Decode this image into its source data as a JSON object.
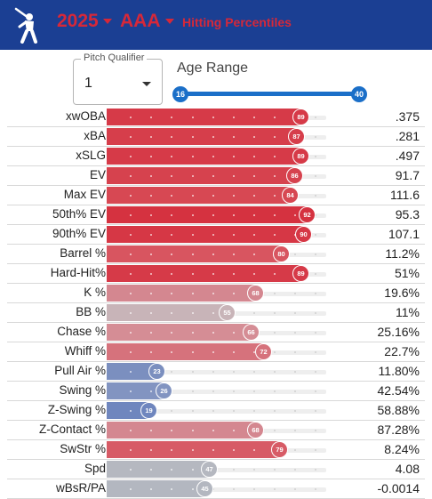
{
  "header": {
    "year": "2025",
    "level": "AAA",
    "subtitle": "Hitting Percentiles",
    "brand_bg": "#1b3f93",
    "accent": "#d62839"
  },
  "controls": {
    "pitch_qualifier_label": "Pitch Qualifier",
    "pitch_qualifier_value": "1",
    "age_range_label": "Age Range",
    "age_min": "16",
    "age_max": "40",
    "slider_color": "#1b6fc8"
  },
  "stats": [
    {
      "label": "xwOBA",
      "pct": "89",
      "value": ".375",
      "color": "#d63a48"
    },
    {
      "label": "xBA",
      "pct": "87",
      "value": ".281",
      "color": "#d63e4b"
    },
    {
      "label": "xSLG",
      "pct": "89",
      "value": ".497",
      "color": "#d63a48"
    },
    {
      "label": "EV",
      "pct": "86",
      "value": "91.7",
      "color": "#d6424e"
    },
    {
      "label": "Max EV",
      "pct": "84",
      "value": "111.6",
      "color": "#d74853"
    },
    {
      "label": "50th% EV",
      "pct": "92",
      "value": "95.3",
      "color": "#d53240"
    },
    {
      "label": "90th% EV",
      "pct": "90",
      "value": "107.1",
      "color": "#d63745"
    },
    {
      "label": "Barrel %",
      "pct": "80",
      "value": "11.2%",
      "color": "#d85560"
    },
    {
      "label": "Hard-Hit%",
      "pct": "89",
      "value": "51%",
      "color": "#d63a48"
    },
    {
      "label": "K %",
      "pct": "68",
      "value": "19.6%",
      "color": "#d48790"
    },
    {
      "label": "BB %",
      "pct": "55",
      "value": "11%",
      "color": "#c8b4b8"
    },
    {
      "label": "Chase %",
      "pct": "66",
      "value": "25.16%",
      "color": "#d58d95"
    },
    {
      "label": "Whiff %",
      "pct": "72",
      "value": "22.7%",
      "color": "#d6727c"
    },
    {
      "label": "Pull Air %",
      "pct": "23",
      "value": "11.80%",
      "color": "#7b8fbf"
    },
    {
      "label": "Swing %",
      "pct": "26",
      "value": "42.54%",
      "color": "#8294c1"
    },
    {
      "label": "Z-Swing %",
      "pct": "19",
      "value": "58.88%",
      "color": "#6f86be"
    },
    {
      "label": "Z-Contact %",
      "pct": "68",
      "value": "87.28%",
      "color": "#d48790"
    },
    {
      "label": "SwStr %",
      "pct": "79",
      "value": "8.24%",
      "color": "#d75b66"
    },
    {
      "label": "Spd",
      "pct": "47",
      "value": "4.08",
      "color": "#b5b8c0"
    },
    {
      "label": "wBsR/PA",
      "pct": "45",
      "value": "-0.0014",
      "color": "#b3b7c0"
    }
  ]
}
